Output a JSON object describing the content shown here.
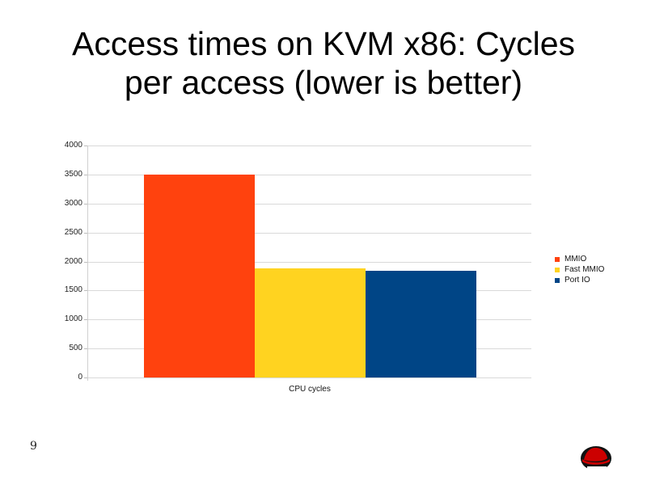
{
  "slide": {
    "title_line1": "Access times on KVM x86: Cycles",
    "title_line2": "per access (lower is better)",
    "page_number": "9",
    "logo": "red-hat-logo-icon"
  },
  "chart_data": {
    "type": "bar",
    "title": "Access times on KVM x86: Cycles per access (lower is better)",
    "categories": [
      "CPU cycles"
    ],
    "series": [
      {
        "name": "MMIO",
        "values": [
          3500
        ],
        "color": "#ff420e"
      },
      {
        "name": "Fast MMIO",
        "values": [
          1880
        ],
        "color": "#ffd320"
      },
      {
        "name": "Port IO",
        "values": [
          1840
        ],
        "color": "#004586"
      }
    ],
    "xlabel": "",
    "ylabel": "",
    "ylim": [
      0,
      4000
    ],
    "yticks": [
      "4000",
      "3500",
      "3000",
      "2500",
      "2000",
      "1500",
      "1000",
      "500",
      "0"
    ],
    "grid": true,
    "legend_position": "right"
  }
}
